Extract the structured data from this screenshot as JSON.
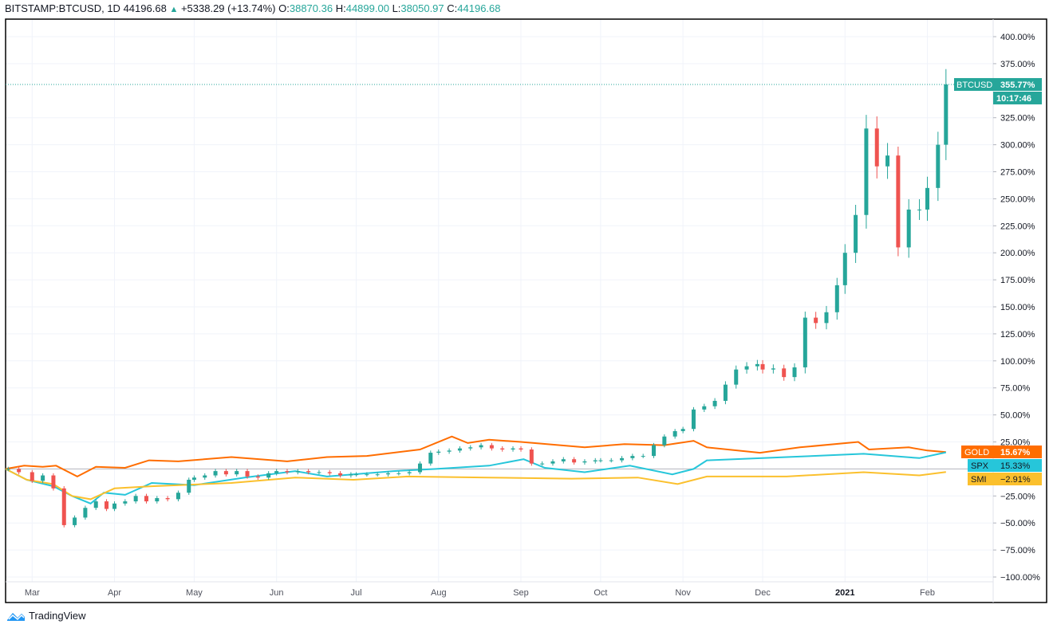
{
  "header": {
    "symbol": "BITSTAMP:BTCUSD, 1D",
    "last": "44196.68",
    "change_icon": "triangle-up",
    "change": "+5338.29 (+13.74%)",
    "o_label": "O:",
    "o": "38870.36",
    "h_label": "H:",
    "h": "44899.00",
    "l_label": "L:",
    "l": "38050.97",
    "c_label": "C:",
    "c": "44196.68"
  },
  "brand": "TradingView",
  "chart_data": {
    "type": "candlestick+line",
    "y_scale": "percent",
    "ylim": [
      -100,
      400
    ],
    "y_ticks": [
      "400.00%",
      "375.00%",
      "325.00%",
      "300.00%",
      "275.00%",
      "250.00%",
      "225.00%",
      "200.00%",
      "175.00%",
      "150.00%",
      "125.00%",
      "100.00%",
      "75.00%",
      "50.00%",
      "25.00%",
      "−25.00%",
      "−50.00%",
      "−75.00%",
      "−100.00%"
    ],
    "y_tick_values": [
      400,
      375,
      325,
      300,
      275,
      250,
      225,
      200,
      175,
      150,
      125,
      100,
      75,
      50,
      25,
      -25,
      -50,
      -75,
      -100
    ],
    "x_ticks": [
      {
        "label": "Mar",
        "date": "2020-03-01"
      },
      {
        "label": "Apr",
        "date": "2020-04-01"
      },
      {
        "label": "May",
        "date": "2020-05-01"
      },
      {
        "label": "Jun",
        "date": "2020-06-01"
      },
      {
        "label": "Jul",
        "date": "2020-07-01"
      },
      {
        "label": "Aug",
        "date": "2020-08-01"
      },
      {
        "label": "Sep",
        "date": "2020-09-01"
      },
      {
        "label": "Oct",
        "date": "2020-10-01"
      },
      {
        "label": "Nov",
        "date": "2020-11-01"
      },
      {
        "label": "Dec",
        "date": "2020-12-01"
      },
      {
        "label": "2021",
        "date": "2021-01-01"
      },
      {
        "label": "Feb",
        "date": "2021-02-01"
      }
    ],
    "x_range": [
      "2020-02-20",
      "2021-02-15"
    ],
    "grid": true,
    "main_series": {
      "name": "BTCUSD",
      "color_up": "#26a69a",
      "color_down": "#ef5350",
      "last_label": "355.77%",
      "countdown": "10:17:46",
      "last_value": 355.77,
      "closes": [
        [
          "2020-02-21",
          0
        ],
        [
          "2020-02-25",
          -3
        ],
        [
          "2020-03-01",
          -11
        ],
        [
          "2020-03-05",
          -6
        ],
        [
          "2020-03-09",
          -18
        ],
        [
          "2020-03-13",
          -52
        ],
        [
          "2020-03-17",
          -45
        ],
        [
          "2020-03-21",
          -36
        ],
        [
          "2020-03-25",
          -30
        ],
        [
          "2020-03-29",
          -37
        ],
        [
          "2020-04-01",
          -32
        ],
        [
          "2020-04-05",
          -30
        ],
        [
          "2020-04-09",
          -25
        ],
        [
          "2020-04-13",
          -30
        ],
        [
          "2020-04-17",
          -27
        ],
        [
          "2020-04-21",
          -28
        ],
        [
          "2020-04-25",
          -22
        ],
        [
          "2020-04-29",
          -10
        ],
        [
          "2020-05-01",
          -8
        ],
        [
          "2020-05-05",
          -6
        ],
        [
          "2020-05-09",
          -2
        ],
        [
          "2020-05-13",
          -5
        ],
        [
          "2020-05-17",
          -2
        ],
        [
          "2020-05-21",
          -7
        ],
        [
          "2020-05-25",
          -8
        ],
        [
          "2020-05-29",
          -4
        ],
        [
          "2020-06-01",
          -2
        ],
        [
          "2020-06-05",
          -3
        ],
        [
          "2020-06-09",
          -2
        ],
        [
          "2020-06-13",
          -3
        ],
        [
          "2020-06-17",
          -3
        ],
        [
          "2020-06-21",
          -4
        ],
        [
          "2020-06-25",
          -6
        ],
        [
          "2020-06-29",
          -5
        ],
        [
          "2020-07-01",
          -5
        ],
        [
          "2020-07-05",
          -5
        ],
        [
          "2020-07-09",
          -5
        ],
        [
          "2020-07-13",
          -4
        ],
        [
          "2020-07-17",
          -4
        ],
        [
          "2020-07-21",
          -3
        ],
        [
          "2020-07-25",
          5
        ],
        [
          "2020-07-29",
          15
        ],
        [
          "2020-08-01",
          16
        ],
        [
          "2020-08-05",
          17
        ],
        [
          "2020-08-09",
          19
        ],
        [
          "2020-08-13",
          20
        ],
        [
          "2020-08-17",
          22
        ],
        [
          "2020-08-21",
          19
        ],
        [
          "2020-08-25",
          18
        ],
        [
          "2020-08-29",
          19
        ],
        [
          "2020-09-01",
          18
        ],
        [
          "2020-09-05",
          5
        ],
        [
          "2020-09-09",
          5
        ],
        [
          "2020-09-13",
          7
        ],
        [
          "2020-09-17",
          9
        ],
        [
          "2020-09-21",
          6
        ],
        [
          "2020-09-25",
          7
        ],
        [
          "2020-09-29",
          8
        ],
        [
          "2020-10-01",
          8
        ],
        [
          "2020-10-05",
          8
        ],
        [
          "2020-10-09",
          10
        ],
        [
          "2020-10-13",
          12
        ],
        [
          "2020-10-17",
          12
        ],
        [
          "2020-10-21",
          22
        ],
        [
          "2020-10-25",
          30
        ],
        [
          "2020-10-29",
          35
        ],
        [
          "2020-11-01",
          37
        ],
        [
          "2020-11-05",
          55
        ],
        [
          "2020-11-09",
          58
        ],
        [
          "2020-11-13",
          63
        ],
        [
          "2020-11-17",
          78
        ],
        [
          "2020-11-21",
          92
        ],
        [
          "2020-11-25",
          95
        ],
        [
          "2020-11-29",
          97
        ],
        [
          "2020-12-01",
          92
        ],
        [
          "2020-12-05",
          93
        ],
        [
          "2020-12-09",
          85
        ],
        [
          "2020-12-13",
          94
        ],
        [
          "2020-12-17",
          140
        ],
        [
          "2020-12-21",
          135
        ],
        [
          "2020-12-25",
          145
        ],
        [
          "2020-12-29",
          170
        ],
        [
          "2021-01-01",
          200
        ],
        [
          "2021-01-05",
          235
        ],
        [
          "2021-01-09",
          315
        ],
        [
          "2021-01-13",
          280
        ],
        [
          "2021-01-17",
          290
        ],
        [
          "2021-01-21",
          205
        ],
        [
          "2021-01-25",
          240
        ],
        [
          "2021-01-29",
          240
        ],
        [
          "2021-02-01",
          260
        ],
        [
          "2021-02-05",
          300
        ],
        [
          "2021-02-08",
          355.77
        ]
      ]
    },
    "series": [
      {
        "name": "GOLD",
        "color": "#ff6d00",
        "label_text_color": "#ffffff",
        "last_label": "15.67%",
        "points": [
          [
            "2020-02-20",
            0
          ],
          [
            "2020-02-27",
            3
          ],
          [
            "2020-03-05",
            2
          ],
          [
            "2020-03-10",
            3
          ],
          [
            "2020-03-18",
            -7
          ],
          [
            "2020-03-25",
            2
          ],
          [
            "2020-04-05",
            1
          ],
          [
            "2020-04-14",
            8
          ],
          [
            "2020-04-25",
            7
          ],
          [
            "2020-05-15",
            11
          ],
          [
            "2020-06-05",
            7
          ],
          [
            "2020-06-20",
            11
          ],
          [
            "2020-07-05",
            12
          ],
          [
            "2020-07-25",
            18
          ],
          [
            "2020-08-06",
            30
          ],
          [
            "2020-08-12",
            24
          ],
          [
            "2020-08-20",
            27
          ],
          [
            "2020-09-01",
            25
          ],
          [
            "2020-09-25",
            20
          ],
          [
            "2020-10-10",
            23
          ],
          [
            "2020-10-25",
            22
          ],
          [
            "2020-11-05",
            26
          ],
          [
            "2020-11-10",
            20
          ],
          [
            "2020-11-30",
            15
          ],
          [
            "2020-12-15",
            20
          ],
          [
            "2021-01-06",
            25
          ],
          [
            "2021-01-10",
            18
          ],
          [
            "2021-01-25",
            20
          ],
          [
            "2021-02-01",
            17
          ],
          [
            "2021-02-08",
            15.67
          ]
        ]
      },
      {
        "name": "SPX",
        "color": "#26c6da",
        "label_text_color": "#131722",
        "last_label": "15.33%",
        "points": [
          [
            "2020-02-20",
            0
          ],
          [
            "2020-02-28",
            -10
          ],
          [
            "2020-03-09",
            -16
          ],
          [
            "2020-03-16",
            -25
          ],
          [
            "2020-03-23",
            -32
          ],
          [
            "2020-03-28",
            -22
          ],
          [
            "2020-04-05",
            -24
          ],
          [
            "2020-04-15",
            -13
          ],
          [
            "2020-05-01",
            -15
          ],
          [
            "2020-05-20",
            -8
          ],
          [
            "2020-06-08",
            -2
          ],
          [
            "2020-06-20",
            -7
          ],
          [
            "2020-07-15",
            -2
          ],
          [
            "2020-07-31",
            0
          ],
          [
            "2020-08-20",
            3
          ],
          [
            "2020-09-02",
            9
          ],
          [
            "2020-09-10",
            1
          ],
          [
            "2020-09-25",
            -3
          ],
          [
            "2020-10-12",
            3
          ],
          [
            "2020-10-28",
            -5
          ],
          [
            "2020-11-05",
            0
          ],
          [
            "2020-11-10",
            8
          ],
          [
            "2020-12-01",
            10
          ],
          [
            "2020-12-20",
            12
          ],
          [
            "2021-01-08",
            14
          ],
          [
            "2021-01-29",
            10
          ],
          [
            "2021-02-08",
            15.33
          ]
        ]
      },
      {
        "name": "SMI",
        "color": "#fbc02d",
        "label_text_color": "#131722",
        "last_label": "−2.91%",
        "points": [
          [
            "2020-02-20",
            0
          ],
          [
            "2020-02-28",
            -10
          ],
          [
            "2020-03-09",
            -14
          ],
          [
            "2020-03-16",
            -25
          ],
          [
            "2020-03-23",
            -28
          ],
          [
            "2020-04-01",
            -18
          ],
          [
            "2020-04-15",
            -16
          ],
          [
            "2020-05-15",
            -13
          ],
          [
            "2020-06-08",
            -8
          ],
          [
            "2020-06-30",
            -10
          ],
          [
            "2020-07-20",
            -7
          ],
          [
            "2020-08-20",
            -8
          ],
          [
            "2020-09-20",
            -9
          ],
          [
            "2020-10-15",
            -8
          ],
          [
            "2020-10-30",
            -14
          ],
          [
            "2020-11-10",
            -7
          ],
          [
            "2020-12-10",
            -7
          ],
          [
            "2021-01-08",
            -3
          ],
          [
            "2021-01-29",
            -6
          ],
          [
            "2021-02-08",
            -2.91
          ]
        ]
      }
    ]
  }
}
